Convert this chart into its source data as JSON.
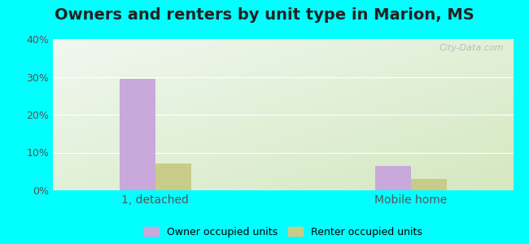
{
  "title": "Owners and renters by unit type in Marion, MS",
  "categories": [
    "1, detached",
    "Mobile home"
  ],
  "owner_values": [
    29.5,
    6.5
  ],
  "renter_values": [
    7.0,
    3.0
  ],
  "owner_color": "#c9a8dc",
  "renter_color": "#c8cc88",
  "ylim": [
    0,
    40
  ],
  "yticks": [
    0,
    10,
    20,
    30,
    40
  ],
  "ytick_labels": [
    "0%",
    "10%",
    "20%",
    "30%",
    "40%"
  ],
  "legend_owner": "Owner occupied units",
  "legend_renter": "Renter occupied units",
  "bg_color": "#00ffff",
  "title_fontsize": 14,
  "bar_width": 0.28,
  "watermark": "City-Data.com",
  "grad_top_left": "#f0f8f0",
  "grad_bottom_right": "#d4e8c0"
}
